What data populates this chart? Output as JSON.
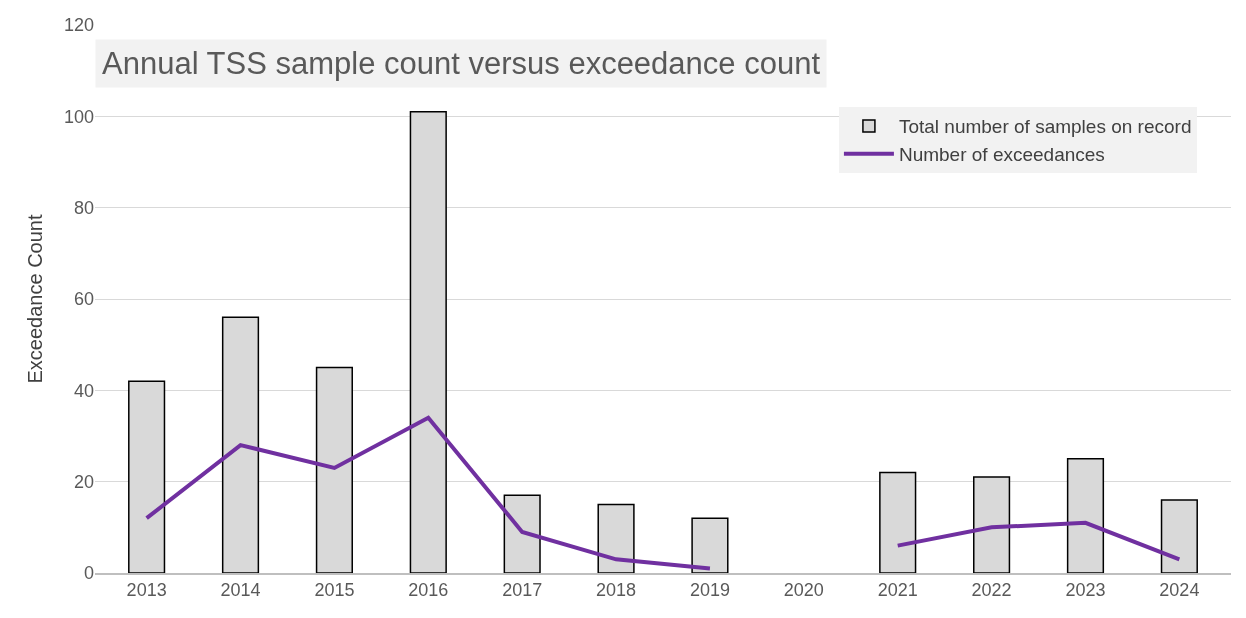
{
  "chart_data": {
    "type": "bar",
    "title": "Annual TSS sample count versus exceedance count",
    "ylabel": "Exceedance Count",
    "categories": [
      "2013",
      "2014",
      "2015",
      "2016",
      "2017",
      "2018",
      "2019",
      "2020",
      "2021",
      "2022",
      "2023",
      "2024"
    ],
    "series": [
      {
        "name": "Total number of samples on record",
        "color": "#d9d9d9",
        "values": [
          42,
          56,
          45,
          101,
          17,
          15,
          12,
          null,
          22,
          21,
          25,
          16
        ]
      },
      {
        "name": "Number of exceedances",
        "type": "line",
        "color": "#7030a0",
        "values": [
          12,
          28,
          23,
          34,
          9,
          3,
          1,
          null,
          6,
          10,
          11,
          3
        ]
      }
    ],
    "ylim": [
      0,
      120
    ],
    "yticks": [
      0,
      20,
      40,
      60,
      80,
      100,
      120
    ],
    "grid": "y",
    "legend": "top right",
    "marker": "none",
    "line_style": "solid"
  }
}
